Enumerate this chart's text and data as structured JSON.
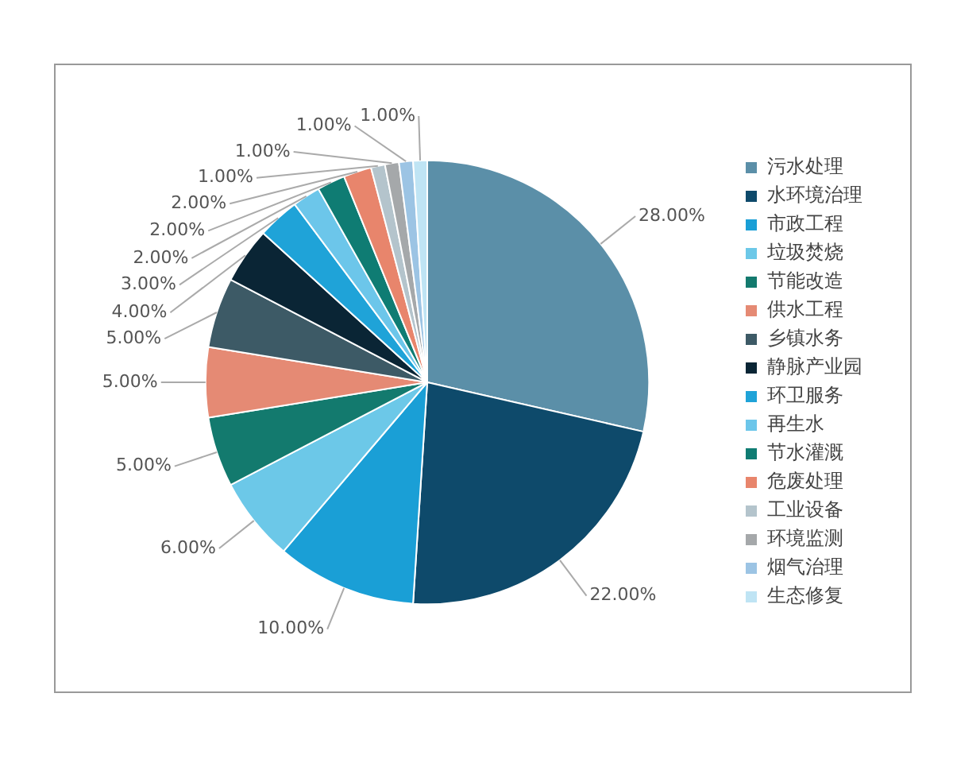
{
  "chart_data": {
    "type": "pie",
    "categories": [
      "污水处理",
      "水环境治理",
      "市政工程",
      "垃圾焚烧",
      "节能改造",
      "供水工程",
      "乡镇水务",
      "静脉产业园",
      "环卫服务",
      "再生水",
      "节水灌溉",
      "危废处理",
      "工业设备",
      "环境监测",
      "烟气治理",
      "生态修复"
    ],
    "values": [
      28,
      22,
      10,
      6,
      5,
      5,
      5,
      4,
      3,
      2,
      2,
      2,
      1,
      1,
      1,
      1
    ],
    "colors": [
      "#5b8fa8",
      "#0e4a6b",
      "#1a9fd6",
      "#6cc8e8",
      "#137a6e",
      "#e58a74",
      "#3d5a66",
      "#0a2535",
      "#1fa3d8",
      "#6cc6ea",
      "#0f7c73",
      "#e8856c",
      "#b4c4cc",
      "#a5a8aa",
      "#9cc4e4",
      "#bfe4f4"
    ],
    "value_labels": [
      "28.00%",
      "22.00%",
      "10.00%",
      "6.00%",
      "5.00%",
      "5.00%",
      "5.00%",
      "4.00%",
      "3.00%",
      "2.00%",
      "2.00%",
      "2.00%",
      "1.00%",
      "1.00%",
      "1.00%",
      "1.00%"
    ],
    "legend": "right"
  }
}
